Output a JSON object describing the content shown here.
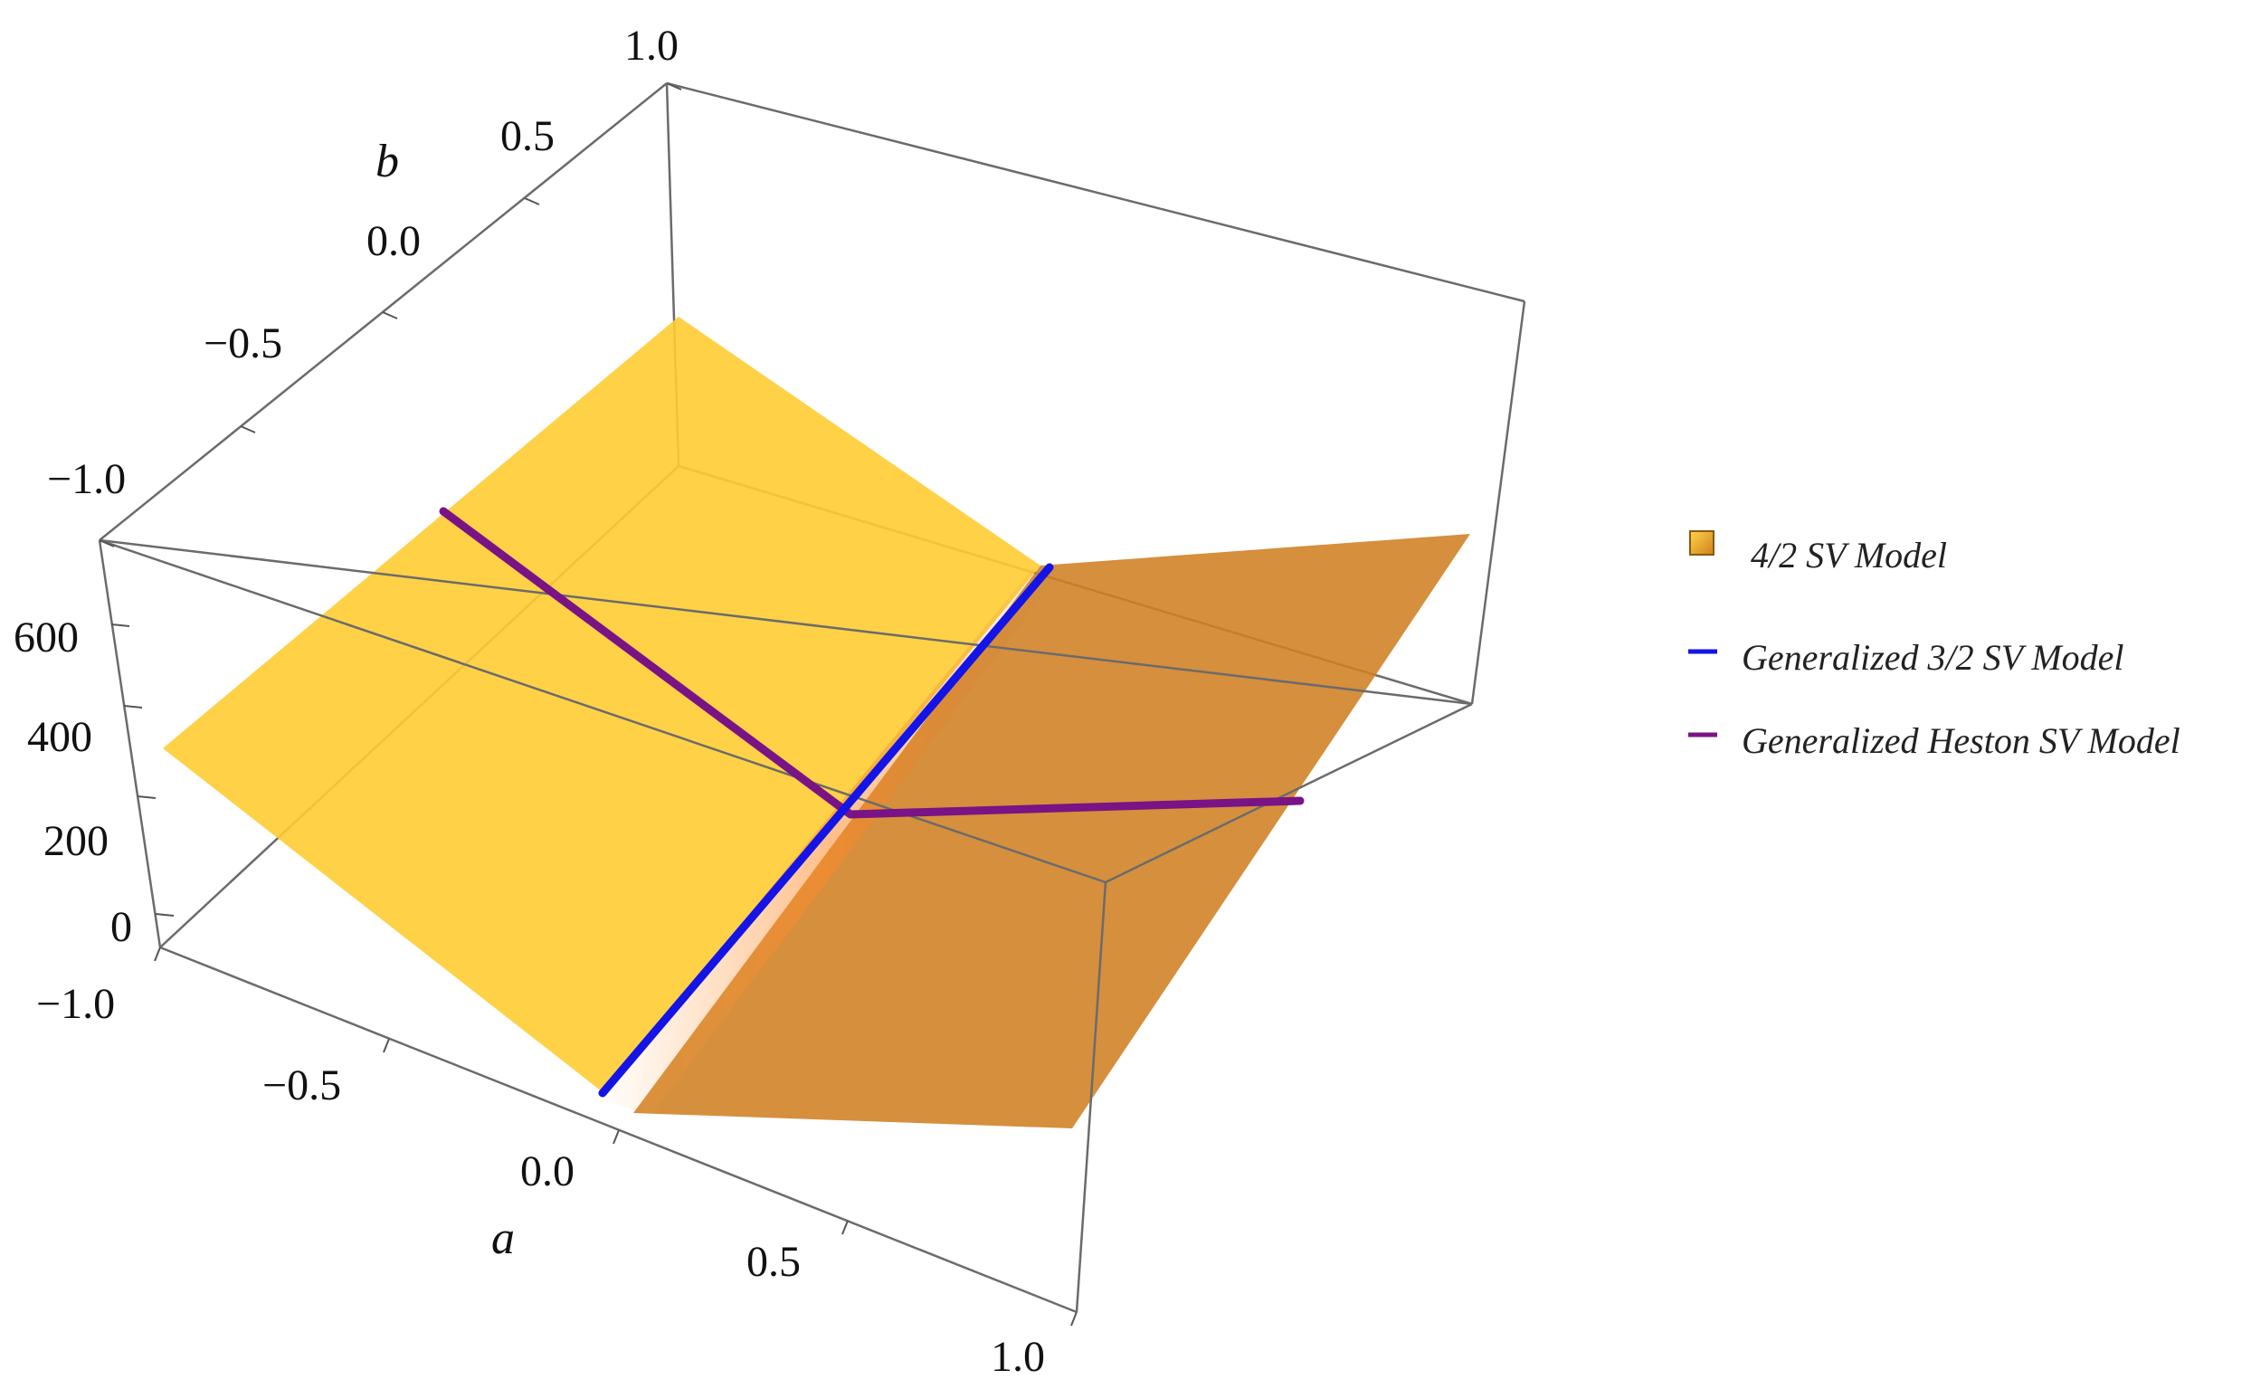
{
  "chart_data": {
    "type": "surface3d",
    "title": "",
    "axes": {
      "a": {
        "label": "a",
        "range": [
          -1.0,
          1.0
        ],
        "ticks": [
          "−1.0",
          "−0.5",
          "0.0",
          "0.5",
          "1.0"
        ]
      },
      "b": {
        "label": "b",
        "range": [
          -1.0,
          1.0
        ],
        "ticks": [
          "−1.0",
          "−0.5",
          "0.0",
          "0.5",
          "1.0"
        ]
      },
      "z": {
        "label": "",
        "range": [
          0,
          800
        ],
        "ticks": [
          "0",
          "200",
          "400",
          "600"
        ]
      }
    },
    "grid": false,
    "legend_position": "right",
    "series": [
      {
        "name": "4/2 SV Model",
        "kind": "surface",
        "color": "#f5b731",
        "description_points": {
          "corners_z": {
            "a-1_b-1": 390,
            "a-1_b1": 260,
            "a1_b-1": 0,
            "a1_b1": 760
          },
          "ridge_a": 0.0
        }
      },
      {
        "name": "Generalized 3/2 SV Model",
        "kind": "line",
        "color": "#1414e6",
        "points": [
          {
            "a": 0.0,
            "b": -1.0,
            "z": 40
          },
          {
            "a": 0.0,
            "b": 0.0,
            "z": 300
          },
          {
            "a": 0.0,
            "b": 1.0,
            "z": 560
          }
        ]
      },
      {
        "name": "Generalized Heston SV Model",
        "kind": "line",
        "color": "#7a1385",
        "points": [
          {
            "a": -1.0,
            "b": 0.0,
            "z": 560
          },
          {
            "a": 0.0,
            "b": 0.0,
            "z": 300
          },
          {
            "a": 1.0,
            "b": 0.0,
            "z": 420
          }
        ]
      }
    ]
  }
}
